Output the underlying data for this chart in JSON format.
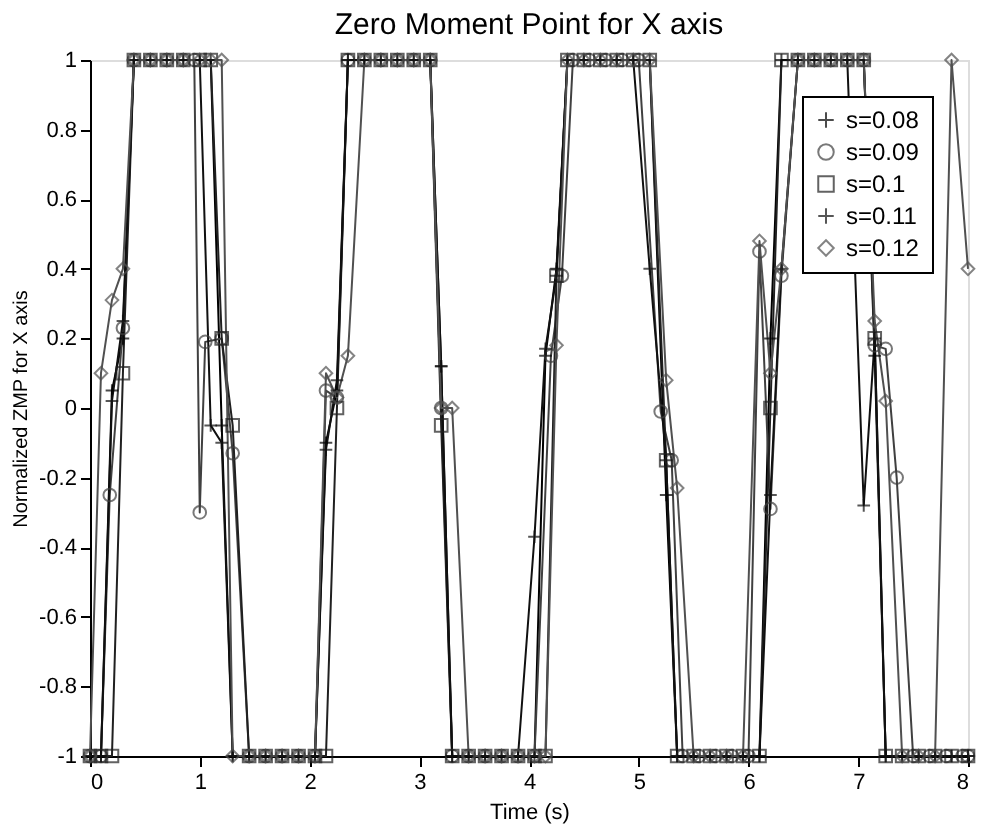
{
  "chart_data": {
    "type": "line",
    "title": "Zero Moment Point for X axis",
    "xlabel": "Time (s)",
    "ylabel": "Normalized ZMP for X axis",
    "xlim": [
      0,
      8
    ],
    "xticks": [
      0,
      1,
      2,
      3,
      4,
      5,
      6,
      7,
      8
    ],
    "ylim": [
      -1,
      1
    ],
    "yticks": [
      -1,
      -0.8,
      -0.6,
      -0.4,
      -0.2,
      0,
      0.2,
      0.4,
      0.6,
      0.8,
      1
    ],
    "grid": false,
    "legend": "top right",
    "line_style": "solid",
    "series": [
      {
        "name": "s=0.08",
        "color": "#000000",
        "marker": "cross",
        "x": [
          0,
          0.1,
          0.2,
          0.3,
          0.4,
          0.55,
          0.7,
          0.85,
          1.0,
          1.1,
          1.2,
          1.3,
          1.45,
          1.6,
          1.75,
          1.9,
          2.05,
          2.15,
          2.25,
          2.35,
          2.5,
          2.65,
          2.8,
          2.95,
          3.1,
          3.2,
          3.3,
          3.45,
          3.6,
          3.75,
          3.9,
          4.05,
          4.15,
          4.25,
          4.35,
          4.5,
          4.65,
          4.8,
          4.95,
          5.1,
          5.25,
          5.35,
          5.5,
          5.65,
          5.8,
          5.95,
          6.1,
          6.2,
          6.3,
          6.45,
          6.6,
          6.75,
          6.9,
          7.05,
          7.15,
          7.25,
          7.4,
          7.55,
          7.7,
          7.85,
          8
        ],
        "values": [
          -1,
          -1,
          0.05,
          0.2,
          1,
          1,
          1,
          1,
          1,
          1,
          -0.05,
          -1,
          -1,
          -1,
          -1,
          -1,
          -1,
          -0.1,
          0.05,
          1,
          1,
          1,
          1,
          1,
          1,
          0.12,
          -1,
          -1,
          -1,
          -1,
          -1,
          -1,
          0.15,
          0.4,
          1,
          1,
          1,
          1,
          1,
          1,
          -0.25,
          -1,
          -1,
          -1,
          -1,
          -1,
          -1,
          0.2,
          1,
          1,
          1,
          1,
          1,
          1,
          0.15,
          -1,
          -1,
          -1,
          -1,
          -1,
          -1
        ]
      },
      {
        "name": "s=0.09",
        "color": "#404040",
        "marker": "circle",
        "x": [
          0,
          0.1,
          0.18,
          0.3,
          0.4,
          0.55,
          0.7,
          0.85,
          0.95,
          1.0,
          1.05,
          1.2,
          1.3,
          1.45,
          1.6,
          1.75,
          1.9,
          2.05,
          2.15,
          2.25,
          2.35,
          2.5,
          2.65,
          2.8,
          2.95,
          3.1,
          3.2,
          3.3,
          3.45,
          3.6,
          3.75,
          3.9,
          4.05,
          4.2,
          4.3,
          4.4,
          4.55,
          4.7,
          4.85,
          5.0,
          5.2,
          5.3,
          5.4,
          5.55,
          5.7,
          5.85,
          6.0,
          6.1,
          6.2,
          6.3,
          6.45,
          6.6,
          6.75,
          6.9,
          7.05,
          7.15,
          7.25,
          7.35,
          7.5,
          7.65,
          7.8,
          7.95,
          8
        ],
        "values": [
          -1,
          -1,
          -0.25,
          0.23,
          1,
          1,
          1,
          1,
          1,
          -0.3,
          0.19,
          0.2,
          -0.13,
          -1,
          -1,
          -1,
          -1,
          -1,
          0.05,
          0.03,
          1,
          1,
          1,
          1,
          1,
          1,
          0,
          -1,
          -1,
          -1,
          -1,
          -1,
          -1,
          0.15,
          0.38,
          1,
          1,
          1,
          1,
          1,
          -0.01,
          -0.15,
          -1,
          -1,
          -1,
          -1,
          -1,
          0.45,
          -0.29,
          0.38,
          1,
          1,
          1,
          1,
          1,
          0.18,
          0.17,
          -0.2,
          -1,
          -1,
          -1,
          -1,
          -1
        ]
      },
      {
        "name": "s=0.1",
        "color": "#202020",
        "marker": "square",
        "x": [
          0,
          0.1,
          0.2,
          0.3,
          0.4,
          0.55,
          0.7,
          0.85,
          1.0,
          1.1,
          1.2,
          1.3,
          1.45,
          1.6,
          1.75,
          1.9,
          2.05,
          2.15,
          2.25,
          2.35,
          2.5,
          2.65,
          2.8,
          2.95,
          3.1,
          3.2,
          3.3,
          3.45,
          3.6,
          3.75,
          3.9,
          4.05,
          4.15,
          4.25,
          4.35,
          4.5,
          4.65,
          4.8,
          4.95,
          5.1,
          5.25,
          5.35,
          5.5,
          5.65,
          5.8,
          5.95,
          6.1,
          6.2,
          6.3,
          6.45,
          6.6,
          6.75,
          6.9,
          7.05,
          7.15,
          7.25,
          7.4,
          7.55,
          7.7,
          7.85,
          8
        ],
        "values": [
          -1,
          -1,
          -1,
          0.1,
          1,
          1,
          1,
          1,
          1,
          1,
          0.2,
          -0.05,
          -1,
          -1,
          -1,
          -1,
          -1,
          -1,
          0,
          1,
          1,
          1,
          1,
          1,
          1,
          -0.05,
          -1,
          -1,
          -1,
          -1,
          -1,
          -1,
          -1,
          0.38,
          1,
          1,
          1,
          1,
          1,
          1,
          -0.15,
          -1,
          -1,
          -1,
          -1,
          -1,
          -1,
          0,
          1,
          1,
          1,
          1,
          1,
          1,
          0.2,
          -1,
          -1,
          -1,
          -1,
          -1,
          -1
        ]
      },
      {
        "name": "s=0.11",
        "color": "#101010",
        "marker": "cross",
        "x": [
          0,
          0.1,
          0.2,
          0.3,
          0.4,
          0.55,
          0.7,
          0.85,
          1.0,
          1.1,
          1.2,
          1.3,
          1.45,
          1.6,
          1.75,
          1.9,
          2.05,
          2.15,
          2.25,
          2.35,
          2.5,
          2.65,
          2.8,
          2.95,
          3.1,
          3.2,
          3.3,
          3.45,
          3.6,
          3.75,
          3.9,
          4.05,
          4.15,
          4.25,
          4.35,
          4.5,
          4.65,
          4.8,
          4.95,
          5.1,
          5.25,
          5.35,
          5.5,
          5.65,
          5.8,
          5.95,
          6.1,
          6.2,
          6.3,
          6.45,
          6.6,
          6.75,
          6.9,
          7.05,
          7.15,
          7.25,
          7.4,
          7.55,
          7.7,
          7.85,
          8
        ],
        "values": [
          -1,
          -1,
          0.02,
          0.25,
          1,
          1,
          1,
          1,
          1,
          -0.05,
          -0.1,
          -1,
          -1,
          -1,
          -1,
          -1,
          -1,
          -0.12,
          0.08,
          1,
          1,
          1,
          1,
          1,
          1,
          0.12,
          -1,
          -1,
          -1,
          -1,
          -1,
          -0.37,
          0.17,
          0.38,
          1,
          1,
          1,
          1,
          1,
          0.4,
          -0.15,
          -1,
          -1,
          -1,
          -1,
          -1,
          -1,
          -0.25,
          0.4,
          1,
          1,
          1,
          1,
          -0.28,
          0.2,
          -1,
          -1,
          -1,
          -1,
          -1,
          -1
        ]
      },
      {
        "name": "s=0.12",
        "color": "#505050",
        "marker": "diamond",
        "x": [
          0,
          0.1,
          0.2,
          0.3,
          0.4,
          0.55,
          0.7,
          0.85,
          1.0,
          1.1,
          1.2,
          1.3,
          1.45,
          1.6,
          1.75,
          1.9,
          2.05,
          2.15,
          2.25,
          2.35,
          2.5,
          2.65,
          2.8,
          2.95,
          3.1,
          3.2,
          3.3,
          3.45,
          3.6,
          3.75,
          3.9,
          4.05,
          4.15,
          4.25,
          4.35,
          4.5,
          4.65,
          4.8,
          4.95,
          5.1,
          5.25,
          5.35,
          5.5,
          5.65,
          5.8,
          5.95,
          6.1,
          6.2,
          6.3,
          6.45,
          6.6,
          6.75,
          6.9,
          7.05,
          7.15,
          7.25,
          7.4,
          7.55,
          7.7,
          7.85,
          8
        ],
        "values": [
          -1,
          0.1,
          0.31,
          0.4,
          1,
          1,
          1,
          1,
          1,
          1,
          1,
          -1,
          -1,
          -1,
          -1,
          -1,
          -1,
          0.1,
          0.03,
          0.15,
          1,
          1,
          1,
          1,
          1,
          0,
          0,
          -1,
          -1,
          -1,
          -1,
          -1,
          -1,
          0.18,
          1,
          1,
          1,
          1,
          1,
          1,
          0.08,
          -0.23,
          -1,
          -1,
          -1,
          -1,
          0.48,
          0.1,
          0.4,
          1,
          1,
          1,
          1,
          1,
          0.25,
          0.02,
          -1,
          -1,
          -1,
          1,
          0.4
        ]
      }
    ]
  }
}
